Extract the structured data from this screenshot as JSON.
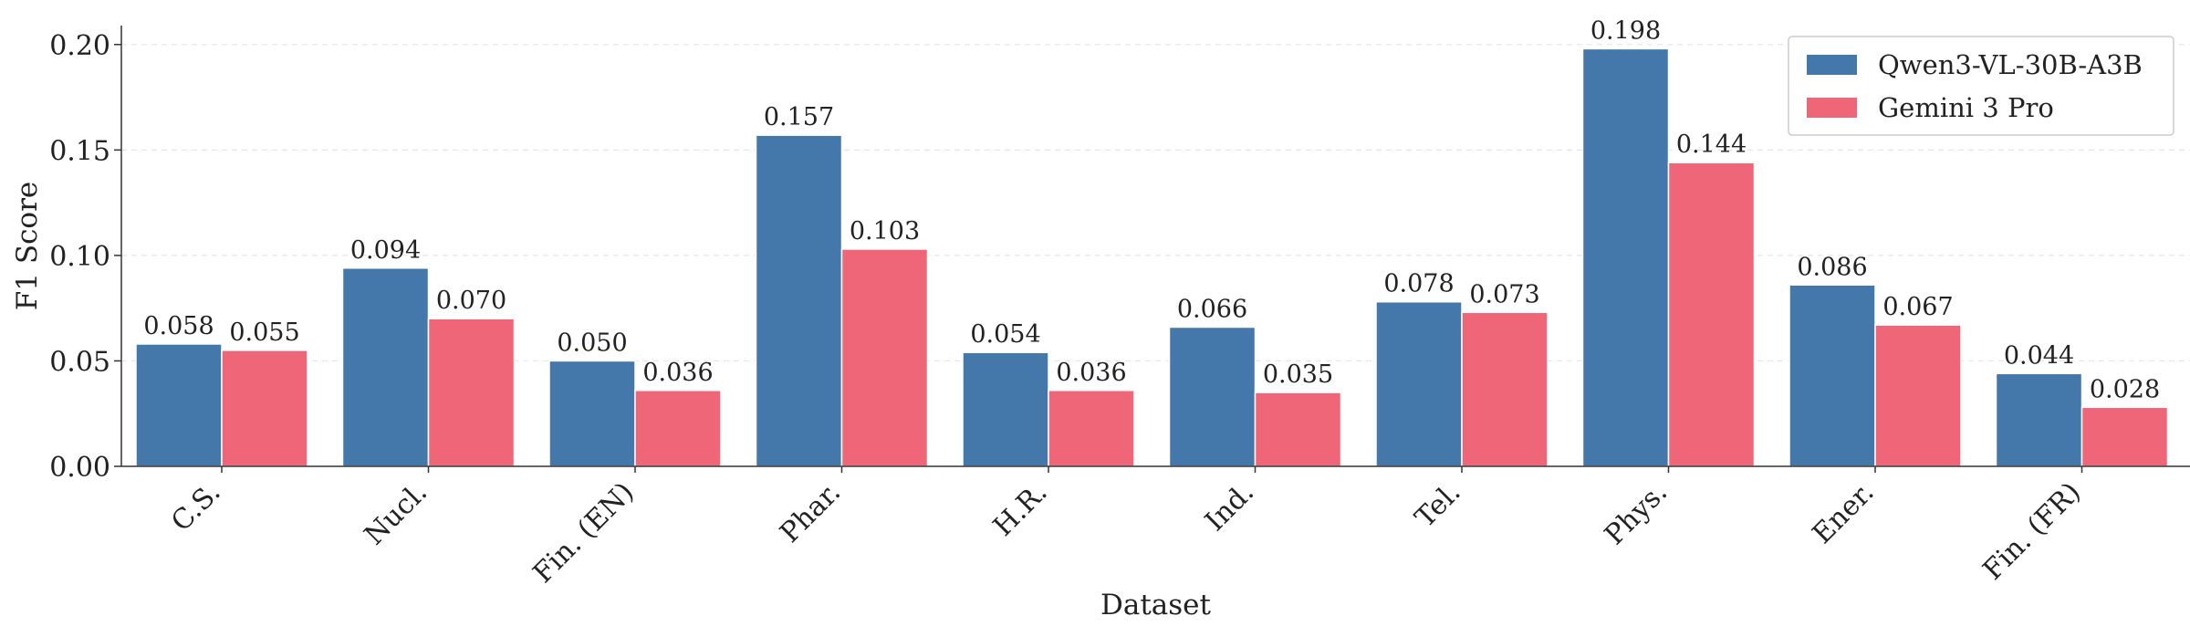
{
  "chart_data": {
    "type": "bar",
    "xlabel": "Dataset",
    "ylabel": "F1 Score",
    "ylim": [
      0,
      0.209
    ],
    "yticks": [
      "0.00",
      "0.05",
      "0.10",
      "0.15",
      "0.20"
    ],
    "ytick_values": [
      0,
      0.05,
      0.1,
      0.15,
      0.2
    ],
    "grid": "horizontal dashed, light",
    "legend_position": "top-right",
    "categories": [
      "C.S.",
      "Nucl.",
      "Fin. (EN)",
      "Phar.",
      "H.R.",
      "Ind.",
      "Tel.",
      "Phys.",
      "Ener.",
      "Fin. (FR)"
    ],
    "series": [
      {
        "name": "Qwen3-VL-30B-A3B",
        "color": "#4477AA",
        "values": [
          0.058,
          0.094,
          0.05,
          0.157,
          0.054,
          0.066,
          0.078,
          0.198,
          0.086,
          0.044
        ],
        "labels": [
          "0.058",
          "0.094",
          "0.050",
          "0.157",
          "0.054",
          "0.066",
          "0.078",
          "0.198",
          "0.086",
          "0.044"
        ]
      },
      {
        "name": "Gemini 3 Pro",
        "color": "#EE6677",
        "values": [
          0.055,
          0.07,
          0.036,
          0.103,
          0.036,
          0.035,
          0.073,
          0.144,
          0.067,
          0.028
        ],
        "labels": [
          "0.055",
          "0.070",
          "0.036",
          "0.103",
          "0.036",
          "0.035",
          "0.073",
          "0.144",
          "0.067",
          "0.028"
        ]
      }
    ]
  }
}
